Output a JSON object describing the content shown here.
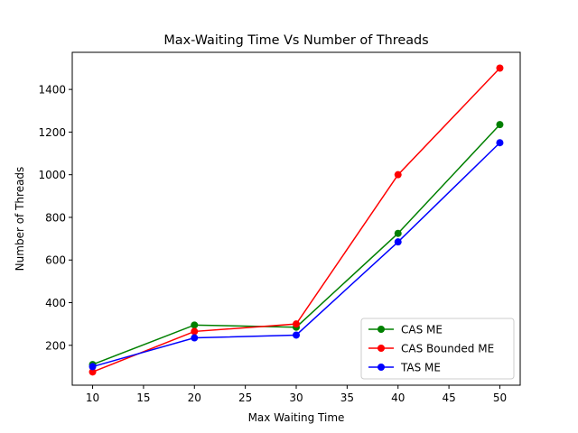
{
  "chart_data": {
    "type": "line",
    "title": "Max-Waiting Time Vs Number of Threads",
    "xlabel": "Max Waiting Time",
    "ylabel": "Number of Threads",
    "x": [
      10,
      20,
      30,
      40,
      50
    ],
    "xlim": [
      8,
      52
    ],
    "ylim": [
      13,
      1574
    ],
    "xticks": [
      10,
      15,
      20,
      25,
      30,
      35,
      40,
      45,
      50
    ],
    "yticks": [
      200,
      400,
      600,
      800,
      1000,
      1200,
      1400
    ],
    "grid": false,
    "legend_position": "lower-right",
    "series": [
      {
        "name": "CAS ME",
        "color": "#008000",
        "values": [
          110,
          295,
          285,
          725,
          1235
        ]
      },
      {
        "name": "CAS Bounded ME",
        "color": "#ff0000",
        "values": [
          75,
          265,
          300,
          1000,
          1500
        ]
      },
      {
        "name": "TAS ME",
        "color": "#0000ff",
        "values": [
          100,
          235,
          248,
          685,
          1150
        ]
      }
    ]
  }
}
